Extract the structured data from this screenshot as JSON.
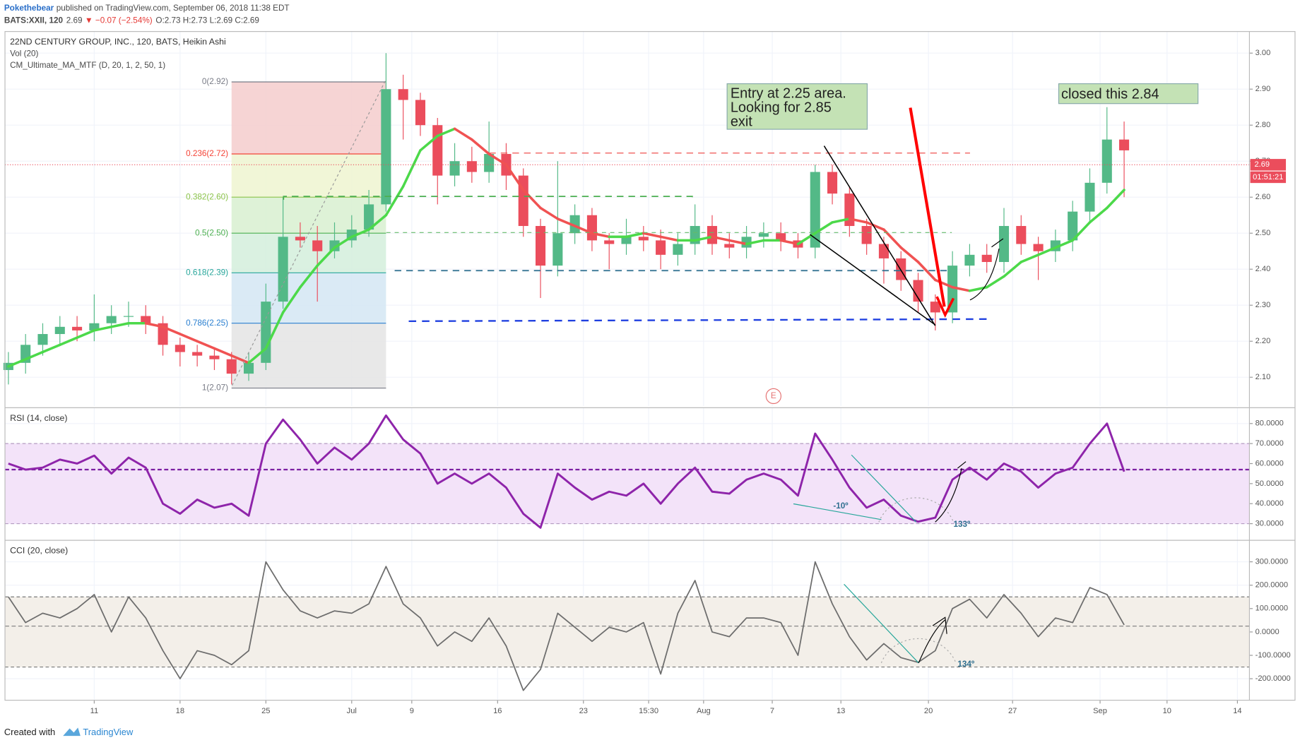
{
  "header": {
    "author": "Pokethebear",
    "published": "published on TradingView.com, September 06, 2018 11:38 EDT",
    "symbol": "BATS:XXII, 120",
    "last": "2.69",
    "change": "▼ −0.07 (−2.54%)",
    "ohlc": "O:2.73 H:2.73 L:2.69 C:2.69"
  },
  "chart_data": [
    {
      "type": "candlestick",
      "title": "22ND CENTURY GROUP, INC., 120, BATS, Heikin Ashi",
      "indicators": [
        "Vol (20)",
        "CM_Ultimate_MA_MTF (D, 20, 1, 2, 50, 1)"
      ],
      "xlim": [
        -0.2,
        72.3
      ],
      "ylim": [
        2.02,
        3.06
      ],
      "yticks": [
        {
          "value": 2.1,
          "label": "2.10"
        },
        {
          "value": 2.2,
          "label": "2.20"
        },
        {
          "value": 2.3,
          "label": "2.30"
        },
        {
          "value": 2.4,
          "label": "2.40"
        },
        {
          "value": 2.5,
          "label": "2.50"
        },
        {
          "value": 2.6,
          "label": "2.60"
        },
        {
          "value": 2.7,
          "label": "2.70"
        },
        {
          "value": 2.8,
          "label": "2.80"
        },
        {
          "value": 2.9,
          "label": "2.90"
        },
        {
          "value": 3.0,
          "label": "3.00"
        }
      ],
      "up_color": "#53b987",
      "down_color": "#eb4d5c",
      "x": [
        0,
        1,
        2,
        3,
        4,
        5,
        6,
        7,
        8,
        9,
        10,
        11,
        12,
        13,
        14,
        15,
        16,
        17,
        18,
        19,
        20,
        21,
        22,
        23,
        24,
        25,
        26,
        27,
        28,
        29,
        30,
        31,
        32,
        33,
        34,
        35,
        36,
        37,
        38,
        39,
        40,
        41,
        42,
        43,
        44,
        45,
        46,
        47,
        48,
        49,
        50,
        51,
        52,
        53,
        54,
        55,
        56,
        57,
        58,
        59,
        60,
        61,
        62,
        63,
        64,
        65
      ],
      "open": [
        2.12,
        2.14,
        2.19,
        2.22,
        2.24,
        2.23,
        2.25,
        2.27,
        2.27,
        2.25,
        2.19,
        2.17,
        2.16,
        2.15,
        2.11,
        2.14,
        2.31,
        2.49,
        2.48,
        2.45,
        2.48,
        2.51,
        2.58,
        2.9,
        2.87,
        2.8,
        2.66,
        2.7,
        2.67,
        2.72,
        2.66,
        2.52,
        2.41,
        2.5,
        2.55,
        2.48,
        2.47,
        2.49,
        2.48,
        2.44,
        2.47,
        2.52,
        2.47,
        2.46,
        2.49,
        2.5,
        2.48,
        2.46,
        2.67,
        2.61,
        2.52,
        2.47,
        2.43,
        2.37,
        2.31,
        2.28,
        2.41,
        2.44,
        2.42,
        2.52,
        2.47,
        2.45,
        2.48,
        2.56,
        2.64,
        2.76
      ],
      "high": [
        2.17,
        2.22,
        2.25,
        2.27,
        2.27,
        2.33,
        2.3,
        2.31,
        2.3,
        2.27,
        2.21,
        2.19,
        2.18,
        2.17,
        2.17,
        2.36,
        2.6,
        2.53,
        2.52,
        2.53,
        2.55,
        2.62,
        3.0,
        2.94,
        2.89,
        2.82,
        2.75,
        2.74,
        2.81,
        2.75,
        2.68,
        2.54,
        2.7,
        2.58,
        2.57,
        2.5,
        2.54,
        2.52,
        2.51,
        2.5,
        2.58,
        2.55,
        2.5,
        2.52,
        2.53,
        2.53,
        2.5,
        2.69,
        2.69,
        2.63,
        2.54,
        2.49,
        2.45,
        2.39,
        2.33,
        2.45,
        2.47,
        2.47,
        2.57,
        2.55,
        2.49,
        2.51,
        2.59,
        2.68,
        2.85,
        2.81
      ],
      "low": [
        2.08,
        2.11,
        2.16,
        2.19,
        2.2,
        2.2,
        2.22,
        2.24,
        2.22,
        2.16,
        2.13,
        2.13,
        2.12,
        2.08,
        2.09,
        2.12,
        2.29,
        2.46,
        2.31,
        2.43,
        2.46,
        2.49,
        2.56,
        2.76,
        2.77,
        2.58,
        2.63,
        2.64,
        2.64,
        2.62,
        2.49,
        2.32,
        2.38,
        2.47,
        2.45,
        2.4,
        2.44,
        2.45,
        2.4,
        2.41,
        2.44,
        2.44,
        2.43,
        2.43,
        2.46,
        2.45,
        2.43,
        2.43,
        2.58,
        2.49,
        2.44,
        2.36,
        2.34,
        2.28,
        2.23,
        2.25,
        2.38,
        2.39,
        2.39,
        2.44,
        2.37,
        2.42,
        2.45,
        2.53,
        2.61,
        2.6
      ],
      "close": [
        2.14,
        2.19,
        2.22,
        2.24,
        2.23,
        2.25,
        2.27,
        2.27,
        2.25,
        2.19,
        2.17,
        2.16,
        2.15,
        2.11,
        2.14,
        2.31,
        2.49,
        2.48,
        2.45,
        2.48,
        2.51,
        2.58,
        2.9,
        2.87,
        2.8,
        2.66,
        2.7,
        2.67,
        2.72,
        2.66,
        2.52,
        2.41,
        2.5,
        2.55,
        2.48,
        2.47,
        2.49,
        2.48,
        2.44,
        2.47,
        2.52,
        2.47,
        2.46,
        2.49,
        2.5,
        2.48,
        2.46,
        2.67,
        2.61,
        2.52,
        2.47,
        2.43,
        2.37,
        2.31,
        2.28,
        2.41,
        2.44,
        2.42,
        2.52,
        2.47,
        2.45,
        2.48,
        2.56,
        2.64,
        2.76,
        2.73
      ],
      "ma": {
        "up_color": "#4cd94a",
        "down_color": "#f05252",
        "values": [
          2.13,
          2.15,
          2.17,
          2.19,
          2.21,
          2.23,
          2.24,
          2.25,
          2.25,
          2.24,
          2.22,
          2.2,
          2.18,
          2.16,
          2.14,
          2.18,
          2.28,
          2.35,
          2.41,
          2.46,
          2.49,
          2.51,
          2.55,
          2.63,
          2.73,
          2.77,
          2.79,
          2.76,
          2.72,
          2.69,
          2.62,
          2.57,
          2.54,
          2.52,
          2.5,
          2.49,
          2.49,
          2.5,
          2.49,
          2.48,
          2.48,
          2.49,
          2.48,
          2.47,
          2.48,
          2.48,
          2.47,
          2.5,
          2.53,
          2.54,
          2.53,
          2.51,
          2.46,
          2.42,
          2.37,
          2.35,
          2.34,
          2.35,
          2.38,
          2.42,
          2.44,
          2.46,
          2.48,
          2.53,
          2.57,
          2.62
        ]
      },
      "fib": {
        "x": [
          13,
          22
        ],
        "levels": [
          {
            "value": 2.92,
            "label": "0(2.92)",
            "color": "#787b86"
          },
          {
            "value": 2.72,
            "label": "0.236(2.72)",
            "color": "#f44336"
          },
          {
            "value": 2.6,
            "label": "0.382(2.60)",
            "color": "#8bc34a"
          },
          {
            "value": 2.5,
            "label": "0.5(2.50)",
            "color": "#4caf50"
          },
          {
            "value": 2.39,
            "label": "0.618(2.39)",
            "color": "#26a69a"
          },
          {
            "value": 2.25,
            "label": "0.786(2.25)",
            "color": "#2a7fd0"
          },
          {
            "value": 2.07,
            "label": "1(2.07)",
            "color": "#787b86"
          }
        ],
        "fills": [
          "#f4cccc",
          "#eef5d0",
          "#d8f0d0",
          "#d4efdc",
          "#d3e6f3",
          "#e4e4e4"
        ]
      },
      "last_price": {
        "value": 2.69,
        "label": "2.69",
        "timer": "01:51:21",
        "color": "#eb4d5c"
      },
      "earnings_marker": "E",
      "annotations": [
        {
          "lines": [
            "Entry at 2.25 area.",
            "Looking for 2.85",
            "exit"
          ]
        },
        {
          "lines": [
            "closed this 2.84"
          ]
        }
      ]
    },
    {
      "type": "line",
      "title": "RSI (14, close)",
      "xlim": [
        -0.2,
        72.3
      ],
      "ylim": [
        21.7,
        87.9
      ],
      "yticks": [
        {
          "value": 30,
          "label": "30.0000"
        },
        {
          "value": 40,
          "label": "40.0000"
        },
        {
          "value": 50,
          "label": "50.0000"
        },
        {
          "value": 60,
          "label": "60.0000"
        },
        {
          "value": 70,
          "label": "70.0000"
        },
        {
          "value": 80,
          "label": "80.0000"
        }
      ],
      "band": [
        30,
        70
      ],
      "band_color": "#f3e3f9",
      "band_line_color": "#b39ac0",
      "midline": 57,
      "midline_color": "#7b1fa2",
      "color": "#8e24aa",
      "x": [
        0,
        1,
        2,
        3,
        4,
        5,
        6,
        7,
        8,
        9,
        10,
        11,
        12,
        13,
        14,
        15,
        16,
        17,
        18,
        19,
        20,
        21,
        22,
        23,
        24,
        25,
        26,
        27,
        28,
        29,
        30,
        31,
        32,
        33,
        34,
        35,
        36,
        37,
        38,
        39,
        40,
        41,
        42,
        43,
        44,
        45,
        46,
        47,
        48,
        49,
        50,
        51,
        52,
        53,
        54,
        55,
        56,
        57,
        58,
        59,
        60,
        61,
        62,
        63,
        64,
        65
      ],
      "values": [
        60,
        57,
        58,
        62,
        60,
        64,
        55,
        63,
        58,
        40,
        35,
        42,
        38,
        40,
        34,
        70,
        82,
        72,
        60,
        68,
        62,
        70,
        84,
        72,
        65,
        50,
        55,
        50,
        55,
        48,
        35,
        28,
        55,
        48,
        42,
        46,
        44,
        50,
        40,
        50,
        58,
        46,
        45,
        52,
        55,
        52,
        44,
        75,
        62,
        48,
        38,
        42,
        34,
        31,
        33,
        52,
        58,
        52,
        60,
        56,
        48,
        55,
        58,
        70,
        80,
        56
      ],
      "angle_labels": [
        "-10º",
        "133º"
      ]
    },
    {
      "type": "line",
      "title": "CCI (20, close)",
      "xlim": [
        -0.2,
        72.3
      ],
      "ylim": [
        -292,
        392
      ],
      "yticks": [
        {
          "value": -200,
          "label": "-200.0000"
        },
        {
          "value": -100,
          "label": "-100.0000"
        },
        {
          "value": 0,
          "label": "0.0000"
        },
        {
          "value": 100,
          "label": "100.0000"
        },
        {
          "value": 200,
          "label": "200.0000"
        },
        {
          "value": 300,
          "label": "300.0000"
        }
      ],
      "band": [
        -150,
        150
      ],
      "band_color": "#f3efe9",
      "band_line_color": "#777777",
      "midline": 25,
      "midline_color": "#888888",
      "color": "#6d6d6d",
      "x": [
        0,
        1,
        2,
        3,
        4,
        5,
        6,
        7,
        8,
        9,
        10,
        11,
        12,
        13,
        14,
        15,
        16,
        17,
        18,
        19,
        20,
        21,
        22,
        23,
        24,
        25,
        26,
        27,
        28,
        29,
        30,
        31,
        32,
        33,
        34,
        35,
        36,
        37,
        38,
        39,
        40,
        41,
        42,
        43,
        44,
        45,
        46,
        47,
        48,
        49,
        50,
        51,
        52,
        53,
        54,
        55,
        56,
        57,
        58,
        59,
        60,
        61,
        62,
        63,
        64,
        65
      ],
      "values": [
        150,
        40,
        80,
        60,
        100,
        160,
        0,
        150,
        60,
        -80,
        -200,
        -80,
        -100,
        -140,
        -80,
        300,
        180,
        90,
        60,
        90,
        80,
        120,
        280,
        120,
        60,
        -60,
        0,
        -40,
        60,
        -60,
        -250,
        -160,
        80,
        20,
        -40,
        20,
        0,
        40,
        -180,
        80,
        220,
        0,
        -20,
        60,
        60,
        40,
        -100,
        300,
        120,
        -20,
        -120,
        -50,
        -110,
        -130,
        -80,
        100,
        140,
        60,
        160,
        80,
        -20,
        60,
        40,
        190,
        160,
        30
      ],
      "angle_labels": [
        "134º"
      ],
      "xticks": [
        {
          "value": 5,
          "label": "11"
        },
        {
          "value": 10,
          "label": "18"
        },
        {
          "value": 15,
          "label": "25"
        },
        {
          "value": 20,
          "label": "Jul"
        },
        {
          "value": 23.5,
          "label": "9"
        },
        {
          "value": 28.5,
          "label": "16"
        },
        {
          "value": 33.5,
          "label": "23"
        },
        {
          "value": 37.3,
          "label": "15:30"
        },
        {
          "value": 40.5,
          "label": "Aug"
        },
        {
          "value": 44.5,
          "label": "7"
        },
        {
          "value": 48.5,
          "label": "13"
        },
        {
          "value": 53.6,
          "label": "20"
        },
        {
          "value": 58.5,
          "label": "27"
        },
        {
          "value": 63.6,
          "label": "Sep"
        },
        {
          "value": 67.5,
          "label": "10"
        },
        {
          "value": 71.6,
          "label": "14"
        }
      ]
    }
  ],
  "footer": {
    "created": "Created with",
    "brand": "TradingView"
  }
}
